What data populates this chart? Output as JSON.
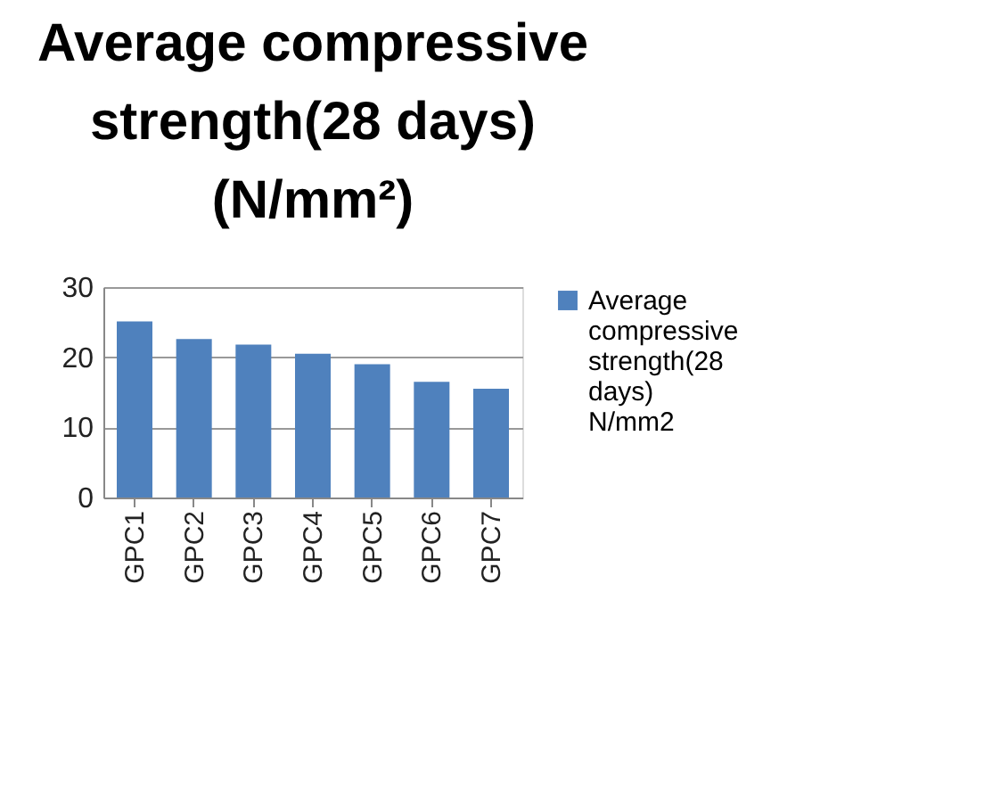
{
  "chart_data": {
    "type": "bar",
    "title": [
      "Average compressive",
      "strength(28 days)",
      "(N/mm²)"
    ],
    "categories": [
      "GPC1",
      "GPC2",
      "GPC3",
      "GPC4",
      "GPC5",
      "GPC6",
      "GPC7"
    ],
    "series": [
      {
        "name": "Average compressive strength(28 days)    N/mm2",
        "color": "#4f81bd",
        "values": [
          25.1,
          22.6,
          21.8,
          20.5,
          19.0,
          16.5,
          15.5
        ]
      }
    ],
    "ylim": [
      0,
      30
    ],
    "yticks": [
      0,
      10,
      20,
      30
    ],
    "grid": "y",
    "legend": "right"
  }
}
